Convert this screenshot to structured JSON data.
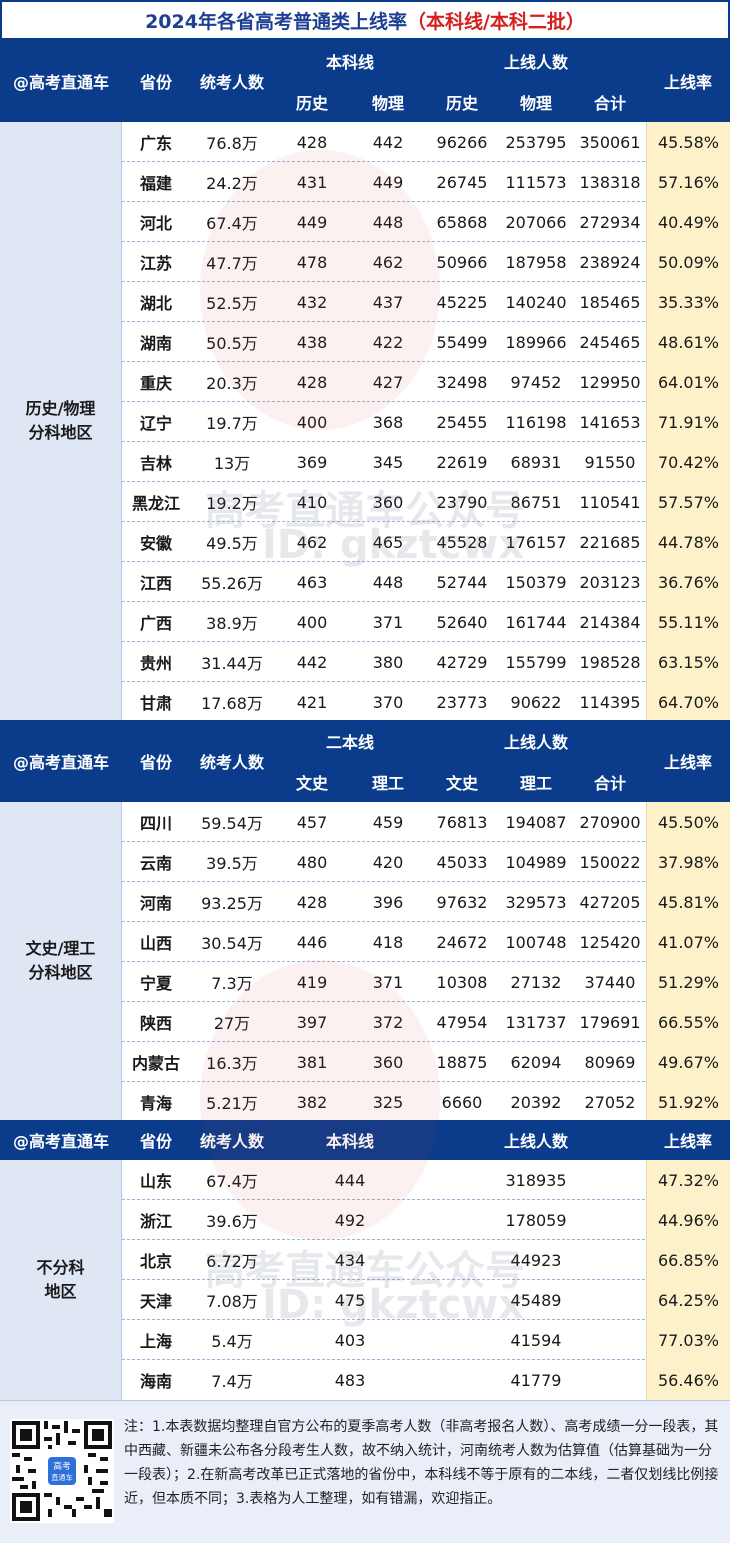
{
  "title": {
    "main": "2024年各省高考普通类上线率",
    "sub": "（本科线/本科二批）"
  },
  "colors": {
    "header_bg": "#0b3c8c",
    "title_text": "#1f3f93",
    "title_highlight": "#d42020",
    "rate_bg": "#fdf1c9",
    "region_bg": "#dfe7f5"
  },
  "section1": {
    "header": {
      "brand": "@高考直通车",
      "province": "省份",
      "examinees": "统考人数",
      "line_group": "本科线",
      "count_group": "上线人数",
      "line_a": "历史",
      "line_b": "物理",
      "count_a": "历史",
      "count_b": "物理",
      "count_total": "合计",
      "rate": "上线率"
    },
    "region": "历史/物理\n分科地区",
    "rows": [
      [
        "广东",
        "76.8万",
        "428",
        "442",
        "96266",
        "253795",
        "350061",
        "45.58%"
      ],
      [
        "福建",
        "24.2万",
        "431",
        "449",
        "26745",
        "111573",
        "138318",
        "57.16%"
      ],
      [
        "河北",
        "67.4万",
        "449",
        "448",
        "65868",
        "207066",
        "272934",
        "40.49%"
      ],
      [
        "江苏",
        "47.7万",
        "478",
        "462",
        "50966",
        "187958",
        "238924",
        "50.09%"
      ],
      [
        "湖北",
        "52.5万",
        "432",
        "437",
        "45225",
        "140240",
        "185465",
        "35.33%"
      ],
      [
        "湖南",
        "50.5万",
        "438",
        "422",
        "55499",
        "189966",
        "245465",
        "48.61%"
      ],
      [
        "重庆",
        "20.3万",
        "428",
        "427",
        "32498",
        "97452",
        "129950",
        "64.01%"
      ],
      [
        "辽宁",
        "19.7万",
        "400",
        "368",
        "25455",
        "116198",
        "141653",
        "71.91%"
      ],
      [
        "吉林",
        "13万",
        "369",
        "345",
        "22619",
        "68931",
        "91550",
        "70.42%"
      ],
      [
        "黑龙江",
        "19.2万",
        "410",
        "360",
        "23790",
        "86751",
        "110541",
        "57.57%"
      ],
      [
        "安徽",
        "49.5万",
        "462",
        "465",
        "45528",
        "176157",
        "221685",
        "44.78%"
      ],
      [
        "江西",
        "55.26万",
        "463",
        "448",
        "52744",
        "150379",
        "203123",
        "36.76%"
      ],
      [
        "广西",
        "38.9万",
        "400",
        "371",
        "52640",
        "161744",
        "214384",
        "55.11%"
      ],
      [
        "贵州",
        "31.44万",
        "442",
        "380",
        "42729",
        "155799",
        "198528",
        "63.15%"
      ],
      [
        "甘肃",
        "17.68万",
        "421",
        "370",
        "23773",
        "90622",
        "114395",
        "64.70%"
      ]
    ]
  },
  "section2": {
    "header": {
      "brand": "@高考直通车",
      "province": "省份",
      "examinees": "统考人数",
      "line_group": "二本线",
      "count_group": "上线人数",
      "line_a": "文史",
      "line_b": "理工",
      "count_a": "文史",
      "count_b": "理工",
      "count_total": "合计",
      "rate": "上线率"
    },
    "region": "文史/理工\n分科地区",
    "rows": [
      [
        "四川",
        "59.54万",
        "457",
        "459",
        "76813",
        "194087",
        "270900",
        "45.50%"
      ],
      [
        "云南",
        "39.5万",
        "480",
        "420",
        "45033",
        "104989",
        "150022",
        "37.98%"
      ],
      [
        "河南",
        "93.25万",
        "428",
        "396",
        "97632",
        "329573",
        "427205",
        "45.81%"
      ],
      [
        "山西",
        "30.54万",
        "446",
        "418",
        "24672",
        "100748",
        "125420",
        "41.07%"
      ],
      [
        "宁夏",
        "7.3万",
        "419",
        "371",
        "10308",
        "27132",
        "37440",
        "51.29%"
      ],
      [
        "陕西",
        "27万",
        "397",
        "372",
        "47954",
        "131737",
        "179691",
        "66.55%"
      ],
      [
        "内蒙古",
        "16.3万",
        "381",
        "360",
        "18875",
        "62094",
        "80969",
        "49.67%"
      ],
      [
        "青海",
        "5.21万",
        "382",
        "325",
        "6660",
        "20392",
        "27052",
        "51.92%"
      ]
    ]
  },
  "section3": {
    "header": {
      "brand": "@高考直通车",
      "province": "省份",
      "examinees": "统考人数",
      "line_group": "本科线",
      "count_group": "上线人数",
      "rate": "上线率"
    },
    "region": "不分科\n地区",
    "rows": [
      [
        "山东",
        "67.4万",
        "444",
        "318935",
        "47.32%"
      ],
      [
        "浙江",
        "39.6万",
        "492",
        "178059",
        "44.96%"
      ],
      [
        "北京",
        "6.72万",
        "434",
        "44923",
        "66.85%"
      ],
      [
        "天津",
        "7.08万",
        "475",
        "45489",
        "64.25%"
      ],
      [
        "上海",
        "5.4万",
        "403",
        "41594",
        "77.03%"
      ],
      [
        "海南",
        "7.4万",
        "483",
        "41779",
        "56.46%"
      ]
    ]
  },
  "note": "注：1.本表数据均整理自官方公布的夏季高考人数（非高考报名人数）、高考成绩一分一段表，其中西藏、新疆未公布各分段考生人数，故不纳入统计，河南统考人数为估算值（估算基础为一分一段表）；2.在新高考改革已正式落地的省份中，本科线不等于原有的二本线，二者仅划线比例接近，但本质不同；3.表格为人工整理，如有错漏，欢迎指正。",
  "qr_badge": "高考\n直通车",
  "watermark": {
    "line1": "高考直通车公众号",
    "line2": "ID: gkztcwx"
  }
}
